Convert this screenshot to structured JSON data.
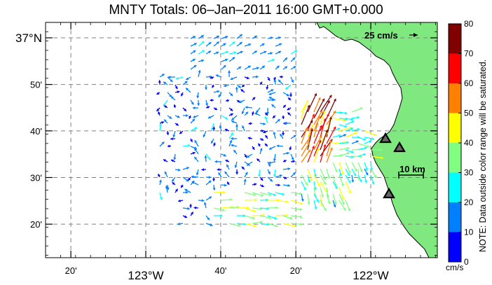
{
  "title": "MNTY Totals: 06–Jan–2011 16:00 GMT+0.000",
  "map": {
    "x_labels": [
      {
        "text": "20'",
        "lon": -123.333
      },
      {
        "text": "123°W",
        "lon": -123.0
      },
      {
        "text": "40'",
        "lon": -122.667
      },
      {
        "text": "20'",
        "lon": -122.333
      },
      {
        "text": "122°W",
        "lon": -122.0
      }
    ],
    "y_labels": [
      {
        "text": "37°N",
        "lat": 37.0
      },
      {
        "text": "50'",
        "lat": 36.833
      },
      {
        "text": "40'",
        "lat": 36.667
      },
      {
        "text": "30'",
        "lat": 36.5
      },
      {
        "text": "20'",
        "lat": 36.333
      }
    ],
    "scale_vector_label": "25 cm/s",
    "scale_distance_label": "10 km",
    "grid_color": "#808080",
    "land_color": "#7fe87f",
    "site_markers": [
      "site-1",
      "site-2",
      "site-3"
    ]
  },
  "colorbar": {
    "ticks": [
      "0",
      "10",
      "20",
      "30",
      "40",
      "50",
      "60",
      "70",
      "80"
    ],
    "unit": "cm/s",
    "note": "NOTE: Data outside color range will be saturated.",
    "colors": [
      "#0000ff",
      "#0080ff",
      "#00ffff",
      "#80ff80",
      "#ffff00",
      "#ff8000",
      "#ff0000",
      "#800000"
    ]
  }
}
